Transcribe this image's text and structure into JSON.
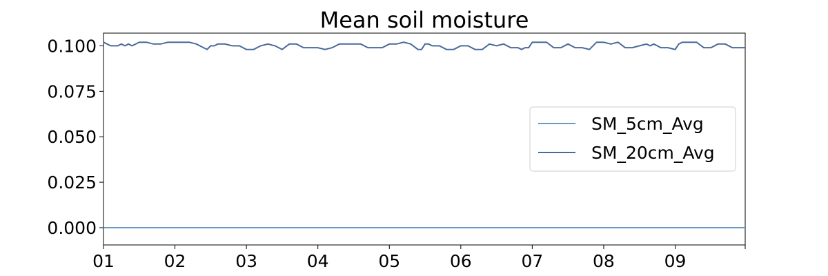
{
  "chart_data": {
    "type": "line",
    "title": "Mean soil moisture",
    "xlabel": "",
    "ylabel": "",
    "x_tick_labels": [
      "01",
      "02",
      "03",
      "04",
      "05",
      "06",
      "07",
      "08",
      "09"
    ],
    "x_tick_positions": [
      1,
      2,
      3,
      4,
      5,
      6,
      7,
      8,
      9
    ],
    "xlim": [
      1,
      9.98
    ],
    "ylim": [
      -0.0095,
      0.107
    ],
    "y_ticks": [
      0.0,
      0.025,
      0.05,
      0.075,
      0.1
    ],
    "y_tick_labels": [
      "0.000",
      "0.025",
      "0.050",
      "0.075",
      "0.100"
    ],
    "legend_position": "center-right",
    "series": [
      {
        "name": "SM_5cm_Avg",
        "color": "#6a9ac4",
        "x": [
          1,
          9.98
        ],
        "values": [
          0.0,
          0.0
        ]
      },
      {
        "name": "SM_20cm_Avg",
        "color": "#4a6a9a",
        "x": [
          1.0,
          1.05,
          1.1,
          1.15,
          1.2,
          1.25,
          1.3,
          1.35,
          1.4,
          1.5,
          1.6,
          1.7,
          1.8,
          1.9,
          2.0,
          2.1,
          2.2,
          2.3,
          2.4,
          2.45,
          2.5,
          2.55,
          2.6,
          2.65,
          2.7,
          2.8,
          2.9,
          3.0,
          3.1,
          3.2,
          3.3,
          3.4,
          3.5,
          3.6,
          3.7,
          3.8,
          3.9,
          4.0,
          4.1,
          4.2,
          4.3,
          4.4,
          4.45,
          4.5,
          4.6,
          4.7,
          4.8,
          4.9,
          5.0,
          5.1,
          5.2,
          5.3,
          5.4,
          5.45,
          5.5,
          5.55,
          5.6,
          5.65,
          5.7,
          5.8,
          5.85,
          5.9,
          6.0,
          6.1,
          6.2,
          6.3,
          6.4,
          6.5,
          6.6,
          6.7,
          6.75,
          6.8,
          6.85,
          6.9,
          6.95,
          7.0,
          7.05,
          7.1,
          7.2,
          7.3,
          7.4,
          7.5,
          7.6,
          7.7,
          7.8,
          7.9,
          8.0,
          8.1,
          8.2,
          8.3,
          8.4,
          8.5,
          8.6,
          8.65,
          8.7,
          8.75,
          8.8,
          8.9,
          9.0,
          9.05,
          9.1,
          9.2,
          9.3,
          9.4,
          9.5,
          9.6,
          9.7,
          9.8,
          9.9,
          9.98
        ],
        "values": [
          0.102,
          0.101,
          0.1,
          0.1,
          0.1,
          0.101,
          0.1,
          0.101,
          0.1,
          0.102,
          0.102,
          0.101,
          0.101,
          0.102,
          0.102,
          0.102,
          0.102,
          0.101,
          0.099,
          0.098,
          0.1,
          0.1,
          0.101,
          0.101,
          0.101,
          0.1,
          0.1,
          0.098,
          0.098,
          0.1,
          0.101,
          0.1,
          0.098,
          0.101,
          0.101,
          0.099,
          0.099,
          0.099,
          0.098,
          0.099,
          0.101,
          0.101,
          0.101,
          0.101,
          0.101,
          0.099,
          0.099,
          0.099,
          0.101,
          0.101,
          0.102,
          0.101,
          0.098,
          0.098,
          0.101,
          0.101,
          0.1,
          0.1,
          0.1,
          0.098,
          0.098,
          0.098,
          0.1,
          0.1,
          0.098,
          0.098,
          0.101,
          0.1,
          0.101,
          0.099,
          0.099,
          0.099,
          0.098,
          0.099,
          0.099,
          0.102,
          0.102,
          0.102,
          0.102,
          0.099,
          0.099,
          0.101,
          0.099,
          0.099,
          0.098,
          0.102,
          0.102,
          0.101,
          0.102,
          0.099,
          0.099,
          0.1,
          0.101,
          0.1,
          0.101,
          0.1,
          0.099,
          0.099,
          0.098,
          0.101,
          0.102,
          0.102,
          0.102,
          0.099,
          0.099,
          0.101,
          0.101,
          0.099,
          0.099,
          0.099
        ]
      }
    ]
  }
}
